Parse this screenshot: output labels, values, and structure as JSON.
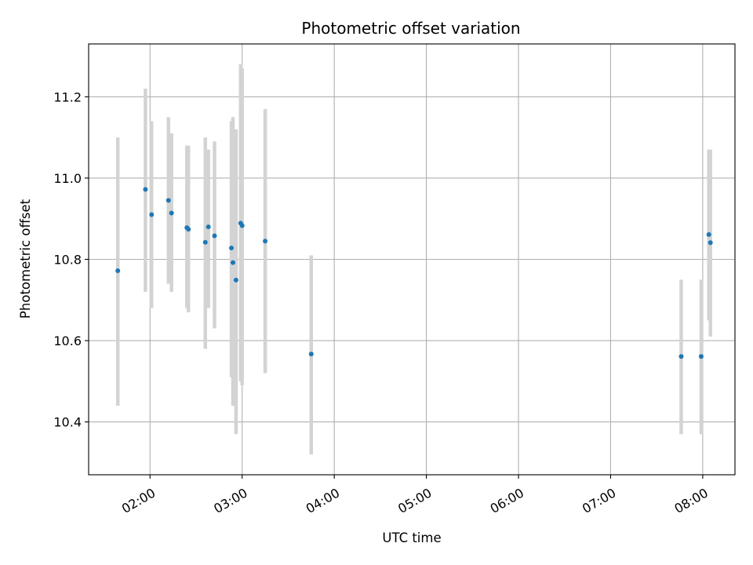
{
  "chart_data": {
    "type": "scatter",
    "title": "Photometric offset variation",
    "xlabel": "UTC time",
    "ylabel": "Photometric offset",
    "x_unit": "UTC time (HH:MM)",
    "xlim": [
      "01:20",
      "08:21"
    ],
    "ylim": [
      10.27,
      11.33
    ],
    "x_ticks": [
      "02:00",
      "03:00",
      "04:00",
      "05:00",
      "06:00",
      "07:00",
      "08:00"
    ],
    "y_ticks": [
      "10.4",
      "10.6",
      "10.8",
      "11.0",
      "11.2"
    ],
    "grid": true,
    "legend": "none",
    "errorbar_color": "#d3d3d3",
    "marker_color": "#1f77b4",
    "series": [
      {
        "points": [
          {
            "x": "01:39",
            "y": 10.772,
            "err_low": 10.44,
            "err_high": 11.1
          },
          {
            "x": "01:57",
            "y": 10.972,
            "err_low": 10.72,
            "err_high": 11.22
          },
          {
            "x": "02:01",
            "y": 10.91,
            "err_low": 10.68,
            "err_high": 11.14
          },
          {
            "x": "02:12",
            "y": 10.945,
            "err_low": 10.74,
            "err_high": 11.15
          },
          {
            "x": "02:14",
            "y": 10.914,
            "err_low": 10.72,
            "err_high": 11.11
          },
          {
            "x": "02:24",
            "y": 10.878,
            "err_low": 10.68,
            "err_high": 11.08
          },
          {
            "x": "02:25",
            "y": 10.874,
            "err_low": 10.67,
            "err_high": 11.08
          },
          {
            "x": "02:36",
            "y": 10.842,
            "err_low": 10.58,
            "err_high": 11.1
          },
          {
            "x": "02:38",
            "y": 10.88,
            "err_low": 10.68,
            "err_high": 11.07
          },
          {
            "x": "02:42",
            "y": 10.858,
            "err_low": 10.63,
            "err_high": 11.09
          },
          {
            "x": "02:53",
            "y": 10.828,
            "err_low": 10.51,
            "err_high": 11.14
          },
          {
            "x": "02:54",
            "y": 10.792,
            "err_low": 10.44,
            "err_high": 11.15
          },
          {
            "x": "02:56",
            "y": 10.749,
            "err_low": 10.37,
            "err_high": 11.12
          },
          {
            "x": "02:59",
            "y": 10.889,
            "err_low": 10.5,
            "err_high": 11.28
          },
          {
            "x": "03:00",
            "y": 10.883,
            "err_low": 10.49,
            "err_high": 11.27
          },
          {
            "x": "03:15",
            "y": 10.845,
            "err_low": 10.52,
            "err_high": 11.17
          },
          {
            "x": "03:45",
            "y": 10.567,
            "err_low": 10.32,
            "err_high": 10.81
          },
          {
            "x": "07:46",
            "y": 10.561,
            "err_low": 10.37,
            "err_high": 10.75
          },
          {
            "x": "07:59",
            "y": 10.561,
            "err_low": 10.37,
            "err_high": 10.75
          },
          {
            "x": "08:04",
            "y": 10.861,
            "err_low": 10.65,
            "err_high": 11.07
          },
          {
            "x": "08:05",
            "y": 10.841,
            "err_low": 10.61,
            "err_high": 11.07
          }
        ]
      }
    ]
  }
}
